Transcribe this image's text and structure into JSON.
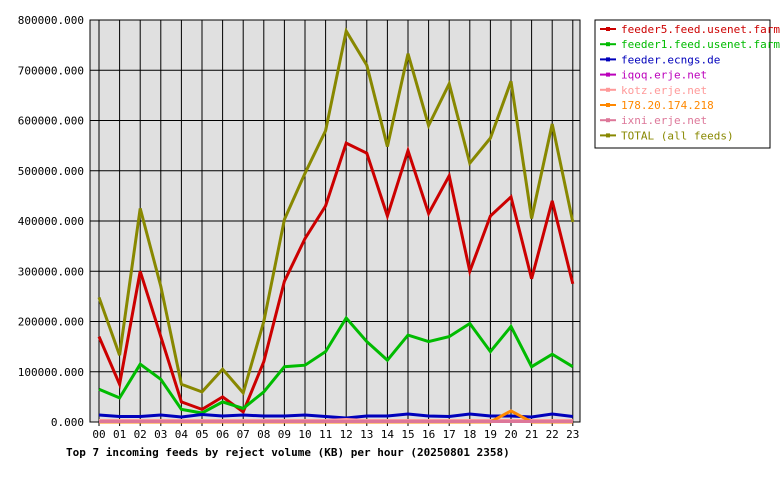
{
  "chart_data": {
    "type": "line",
    "title": "Top 7 incoming feeds by reject volume (KB) per hour (20250801 2358)",
    "ylim": [
      0,
      800000
    ],
    "y_ticks": [
      "0.000",
      "100000.000",
      "200000.000",
      "300000.000",
      "400000.000",
      "500000.000",
      "600000.000",
      "700000.000",
      "800000.000"
    ],
    "categories": [
      "00",
      "01",
      "02",
      "03",
      "04",
      "05",
      "06",
      "07",
      "08",
      "09",
      "10",
      "11",
      "12",
      "13",
      "14",
      "15",
      "16",
      "17",
      "18",
      "19",
      "20",
      "21",
      "22",
      "23"
    ],
    "grid": true,
    "legend_position": "right",
    "series": [
      {
        "name": "feeder5.feed.usenet.farm",
        "color": "#cc0000",
        "values": [
          170000,
          75000,
          300000,
          170000,
          40000,
          25000,
          50000,
          20000,
          120000,
          280000,
          365000,
          430000,
          555000,
          535000,
          410000,
          540000,
          415000,
          490000,
          300000,
          410000,
          448000,
          285000,
          440000,
          275000
        ]
      },
      {
        "name": "feeder1.feed.usenet.farm",
        "color": "#00bb00",
        "values": [
          65000,
          48000,
          115000,
          85000,
          25000,
          18000,
          40000,
          27000,
          60000,
          110000,
          113000,
          140000,
          207000,
          160000,
          123000,
          173000,
          160000,
          170000,
          196000,
          140000,
          190000,
          110000,
          135000,
          110000
        ]
      },
      {
        "name": "feeder.ecngs.de",
        "color": "#0000bb",
        "values": [
          14000,
          11000,
          11000,
          14000,
          10000,
          15000,
          12000,
          14000,
          12000,
          12000,
          14000,
          11000,
          8000,
          12000,
          12000,
          16000,
          12000,
          11000,
          16000,
          12000,
          12000,
          10000,
          16000,
          11000
        ]
      },
      {
        "name": "iqoq.erje.net",
        "color": "#bb00bb",
        "values": [
          2000,
          2000,
          2000,
          2000,
          2000,
          2000,
          2000,
          2000,
          2000,
          2000,
          2000,
          2000,
          2000,
          2000,
          2000,
          2000,
          2000,
          2000,
          2000,
          2000,
          2000,
          2000,
          2000,
          2000
        ]
      },
      {
        "name": "kotz.erje.net",
        "color": "#ff9999",
        "values": [
          3000,
          3000,
          3000,
          3000,
          3000,
          3000,
          3000,
          3000,
          3000,
          3000,
          3000,
          3000,
          5000,
          3000,
          3000,
          3000,
          3000,
          3000,
          3000,
          3000,
          3000,
          3000,
          3000,
          3000
        ]
      },
      {
        "name": "178.20.174.218",
        "color": "#ff8800",
        "values": [
          0,
          0,
          0,
          0,
          0,
          0,
          0,
          0,
          0,
          0,
          0,
          0,
          0,
          0,
          0,
          0,
          0,
          0,
          0,
          0,
          22000,
          0,
          0,
          0
        ]
      },
      {
        "name": "ixni.erje.net",
        "color": "#dd7799",
        "values": [
          1000,
          1000,
          1000,
          1000,
          1000,
          1000,
          1000,
          1000,
          1000,
          1000,
          1000,
          1000,
          1000,
          1000,
          1000,
          1000,
          1000,
          1000,
          1000,
          1000,
          1000,
          1000,
          1000,
          1000
        ]
      },
      {
        "name": "TOTAL (all feeds)",
        "color": "#888800",
        "values": [
          248000,
          133000,
          425000,
          270000,
          75000,
          60000,
          105000,
          58000,
          200000,
          403000,
          495000,
          580000,
          778000,
          710000,
          548000,
          733000,
          590000,
          673000,
          515000,
          565000,
          678000,
          405000,
          593000,
          398000
        ]
      }
    ]
  }
}
